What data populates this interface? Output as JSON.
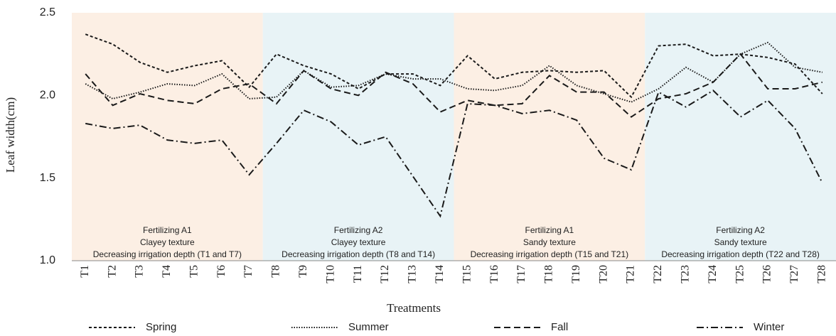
{
  "chart_data": {
    "type": "line",
    "x_label": "Treatments",
    "y_label": "Leaf width(cm)",
    "categories": [
      "T1",
      "T2",
      "T3",
      "T4",
      "T5",
      "T6",
      "T7",
      "T8",
      "T9",
      "T10",
      "T11",
      "T12",
      "T13",
      "T14",
      "T15",
      "T16",
      "T17",
      "T18",
      "T19",
      "T20",
      "T21",
      "T22",
      "T23",
      "T24",
      "T25",
      "T26",
      "T27",
      "T28"
    ],
    "ylim": [
      1.0,
      2.5
    ],
    "yticks": [
      {
        "value": 1.0,
        "label": "1.0"
      },
      {
        "value": 1.5,
        "label": "1.5"
      },
      {
        "value": 2.0,
        "label": "2.0"
      },
      {
        "value": 2.5,
        "label": "2.5"
      }
    ],
    "regions": [
      {
        "lines": [
          "Fertilizing A1",
          "Clayey texture",
          "Decreasing irrigation depth (T1 and T7)"
        ],
        "color": "#fcefe4"
      },
      {
        "lines": [
          "Fertilizing A2",
          "Clayey texture",
          "Decreasing irrigation depth (T8 and T14)"
        ],
        "color": "#e8f3f6"
      },
      {
        "lines": [
          "Fertilizing A1",
          "Sandy texture",
          "Decreasing irrigation depth (T15 and T21)"
        ],
        "color": "#fcefe4"
      },
      {
        "lines": [
          "Fertilizing A2",
          "Sandy texture",
          "Decreasing irrigation depth (T22 and T28)"
        ],
        "color": "#e8f3f6"
      }
    ],
    "series": [
      {
        "name": "Spring",
        "color": "#1a1a1a",
        "dash": "4,3",
        "values": [
          2.37,
          2.31,
          2.2,
          2.14,
          2.18,
          2.21,
          2.05,
          2.25,
          2.18,
          2.13,
          2.04,
          2.13,
          2.13,
          2.06,
          2.24,
          2.1,
          2.14,
          2.15,
          2.14,
          2.15,
          1.99,
          2.3,
          2.31,
          2.24,
          2.25,
          2.23,
          2.19,
          2.01
        ]
      },
      {
        "name": "Summer",
        "color": "#1a1a1a",
        "dash": "1.5,2",
        "values": [
          2.07,
          1.98,
          2.02,
          2.07,
          2.06,
          2.13,
          1.98,
          1.99,
          2.15,
          2.05,
          2.06,
          2.13,
          2.1,
          2.1,
          2.04,
          2.03,
          2.06,
          2.18,
          2.06,
          2.01,
          1.96,
          2.04,
          2.17,
          2.08,
          2.25,
          2.32,
          2.17,
          2.14
        ]
      },
      {
        "name": "Fall",
        "color": "#1a1a1a",
        "dash": "9,5",
        "values": [
          2.13,
          1.94,
          2.01,
          1.97,
          1.95,
          2.04,
          2.07,
          1.95,
          2.15,
          2.04,
          2.0,
          2.14,
          2.07,
          1.9,
          1.97,
          1.94,
          1.95,
          2.12,
          2.02,
          2.02,
          1.87,
          1.98,
          2.01,
          2.08,
          2.25,
          2.04,
          2.04,
          2.08
        ]
      },
      {
        "name": "Winter",
        "color": "#1a1a1a",
        "dash": "10,4,2,4",
        "values": [
          1.83,
          1.8,
          1.82,
          1.73,
          1.71,
          1.73,
          1.52,
          1.71,
          1.91,
          1.84,
          1.7,
          1.75,
          1.51,
          1.27,
          1.95,
          1.94,
          1.89,
          1.91,
          1.85,
          1.62,
          1.55,
          2.02,
          1.93,
          2.03,
          1.87,
          1.97,
          1.8,
          1.47
        ]
      }
    ]
  }
}
